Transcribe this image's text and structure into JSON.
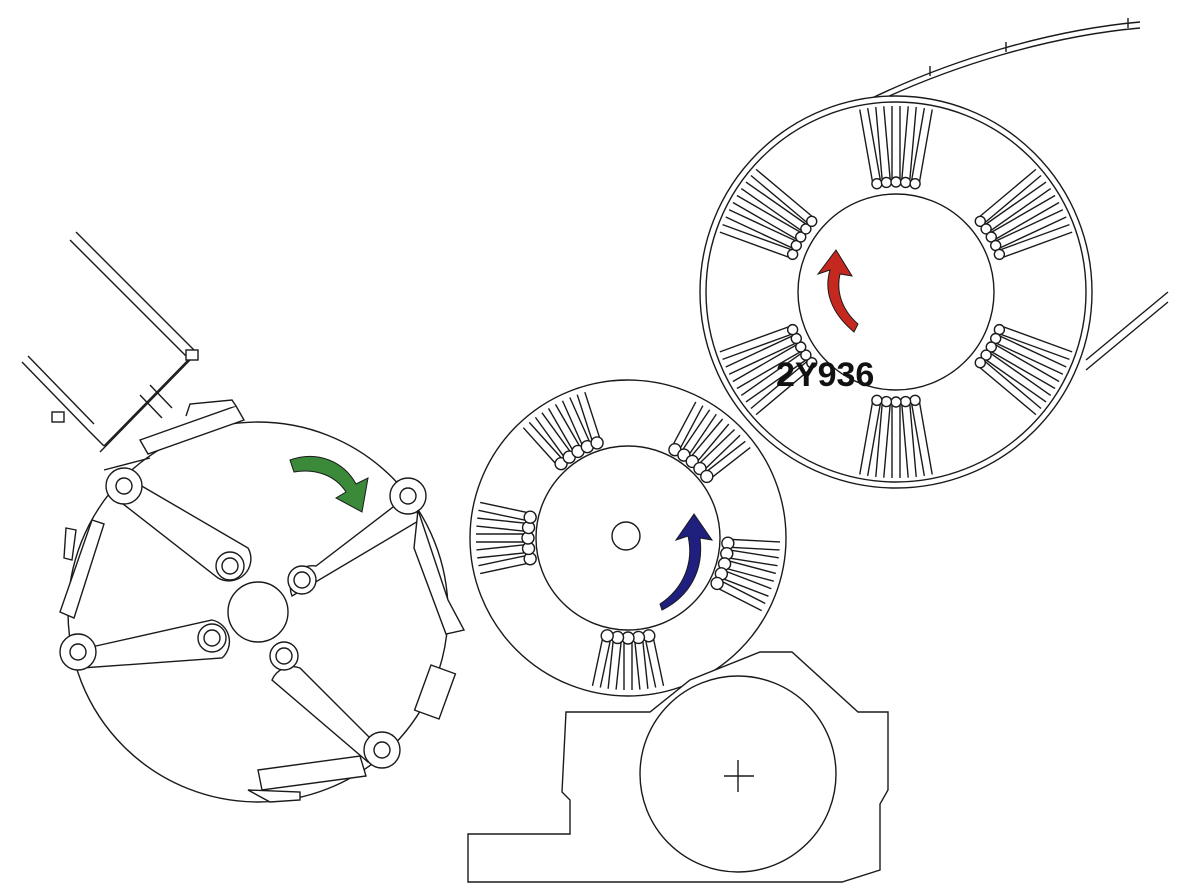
{
  "diagram": {
    "part_number": "2Y936",
    "arrow_colors": {
      "left_drum": "#3b8a3a",
      "middle_drum": "#1f1f80",
      "right_drum": "#c4281e"
    }
  }
}
